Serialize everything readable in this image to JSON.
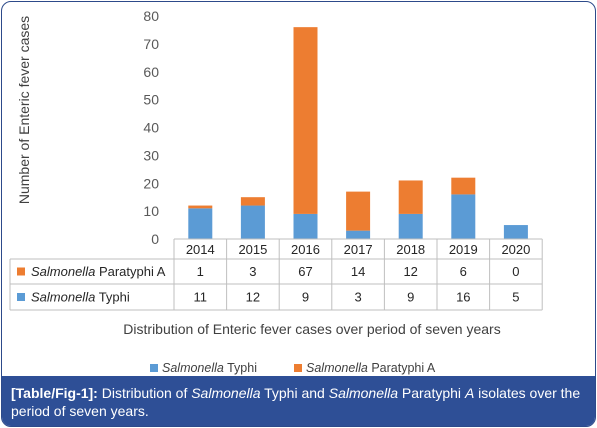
{
  "chart_data": {
    "type": "bar",
    "stacked": true,
    "categories": [
      "2014",
      "2015",
      "2016",
      "2017",
      "2018",
      "2019",
      "2020"
    ],
    "series": [
      {
        "name": "Salmonella Typhi",
        "values": [
          11,
          12,
          9,
          3,
          9,
          16,
          5
        ],
        "color": "#5b9bd5"
      },
      {
        "name": "Salmonella Paratyphi A",
        "values": [
          1,
          3,
          67,
          14,
          12,
          6,
          0
        ],
        "color": "#ed7d31"
      }
    ],
    "ylabel": "Number of Enteric fever cases",
    "xlabel": "Distribution of Enteric fever cases over period of seven years",
    "ylim": [
      0,
      80
    ],
    "yticks": [
      0,
      10,
      20,
      30,
      40,
      50,
      60,
      70,
      80
    ],
    "grid": false,
    "data_table": true,
    "legend_position": "bottom"
  },
  "table": {
    "rows": [
      {
        "genus": "Salmonella",
        "species": "Paratyphi A",
        "values": [
          "1",
          "3",
          "67",
          "14",
          "12",
          "6",
          "0"
        ]
      },
      {
        "genus": "Salmonella",
        "species": "Typhi",
        "values": [
          "11",
          "12",
          "9",
          "3",
          "9",
          "16",
          "5"
        ]
      }
    ]
  },
  "legend": [
    {
      "genus": "Salmonella",
      "species": "Typhi"
    },
    {
      "genus": "Salmonella",
      "species": "Paratyphi A"
    }
  ],
  "caption": {
    "ref": "[Table/Fig-1]:",
    "t1": "Distribution of ",
    "g1": "Salmonella",
    "t2": " Typhi and ",
    "g2": "Salmonella",
    "t3": " Paratyphi ",
    "g3": "A",
    "t4": " isolates over the period of seven years."
  },
  "colors": {
    "caption_bg": "#2e4f96",
    "frame": "#2d4a8a"
  }
}
